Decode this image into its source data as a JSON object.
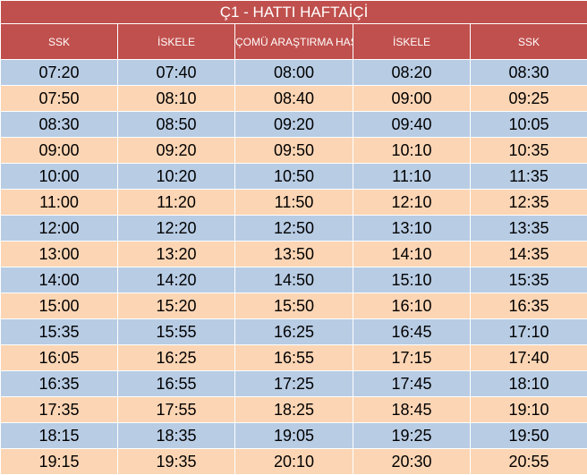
{
  "title": "Ç1 - HATTI HAFTAİÇİ",
  "headers": [
    "SSK",
    "İSKELE",
    "ÇOMÜ ARAŞTIRMA HASTANESİ",
    "İSKELE",
    "SSK"
  ],
  "colors": {
    "header": "#c0504d",
    "row_blue": "#b8cce4",
    "row_peach": "#fcd5b4"
  },
  "rows": [
    [
      "07:20",
      "07:40",
      "08:00",
      "08:20",
      "08:30"
    ],
    [
      "07:50",
      "08:10",
      "08:40",
      "09:00",
      "09:25"
    ],
    [
      "08:30",
      "08:50",
      "09:20",
      "09:40",
      "10:05"
    ],
    [
      "09:00",
      "09:20",
      "09:50",
      "10:10",
      "10:35"
    ],
    [
      "10:00",
      "10:20",
      "10:50",
      "11:10",
      "11:35"
    ],
    [
      "11:00",
      "11:20",
      "11:50",
      "12:10",
      "12:35"
    ],
    [
      "12:00",
      "12:20",
      "12:50",
      "13:10",
      "13:35"
    ],
    [
      "13:00",
      "13:20",
      "13:50",
      "14:10",
      "14:35"
    ],
    [
      "14:00",
      "14:20",
      "14:50",
      "15:10",
      "15:35"
    ],
    [
      "15:00",
      "15:20",
      "15:50",
      "16:10",
      "16:35"
    ],
    [
      "15:35",
      "15:55",
      "16:25",
      "16:45",
      "17:10"
    ],
    [
      "16:05",
      "16:25",
      "16:55",
      "17:15",
      "17:40"
    ],
    [
      "16:35",
      "16:55",
      "17:25",
      "17:45",
      "18:10"
    ],
    [
      "17:35",
      "17:55",
      "18:25",
      "18:45",
      "19:10"
    ],
    [
      "18:15",
      "18:35",
      "19:05",
      "19:25",
      "19:50"
    ],
    [
      "19:15",
      "19:35",
      "20:10",
      "20:30",
      "20:55"
    ]
  ]
}
